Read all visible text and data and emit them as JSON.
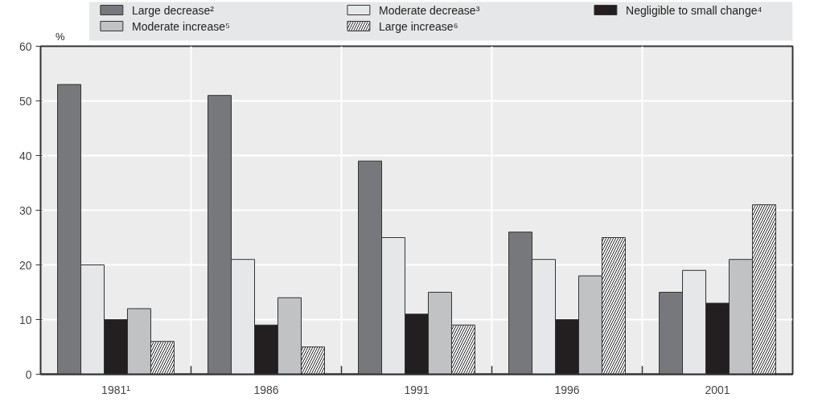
{
  "chart_data": {
    "type": "bar",
    "categories": [
      "1981¹",
      "1986",
      "1991",
      "1996",
      "2001"
    ],
    "ylabel": "%",
    "ylim": [
      0,
      60
    ],
    "yticks": [
      0,
      10,
      20,
      30,
      40,
      50,
      60
    ],
    "grid": true,
    "legend": "top",
    "series": [
      {
        "name": "Large decrease²",
        "color": "#77787b",
        "values": [
          53,
          51,
          39,
          26,
          15
        ]
      },
      {
        "name": "Moderate decrease³",
        "color": "#e6e7e8",
        "values": [
          20,
          21,
          25,
          21,
          19
        ]
      },
      {
        "name": "Negligible to small change⁴",
        "color": "#231f20",
        "values": [
          10,
          9,
          11,
          10,
          13
        ]
      },
      {
        "name": "Moderate increase⁵",
        "color": "#c1c2c4",
        "values": [
          12,
          14,
          15,
          18,
          21
        ]
      },
      {
        "name": "Large increase⁶",
        "color": "#ffffff",
        "values": [
          6,
          5,
          9,
          25,
          31
        ]
      }
    ]
  }
}
